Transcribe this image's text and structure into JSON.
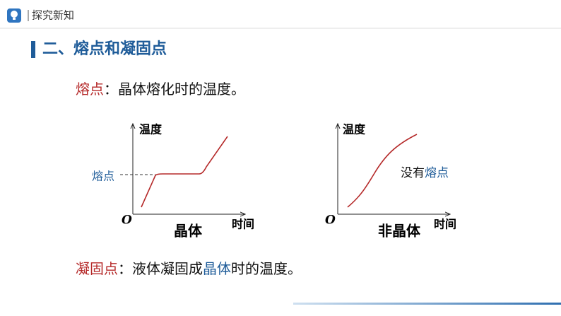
{
  "header": {
    "title": "探究新知"
  },
  "section": {
    "title": "二、熔点和凝固点"
  },
  "definitions": [
    {
      "parts": [
        "熔点",
        "：晶体熔化时的温度。"
      ]
    },
    {
      "parts": [
        "凝固点",
        "：液体凝固成",
        "晶体",
        "时的温度。"
      ]
    }
  ],
  "graphs": [
    {
      "y_label": "温度",
      "x_label": "时间",
      "origin": "O",
      "marker": "熔点",
      "caption": "晶体"
    },
    {
      "y_label": "温度",
      "x_label": "时间",
      "origin": "O",
      "note": [
        "没有",
        "熔点"
      ],
      "caption": "非晶体"
    }
  ]
}
